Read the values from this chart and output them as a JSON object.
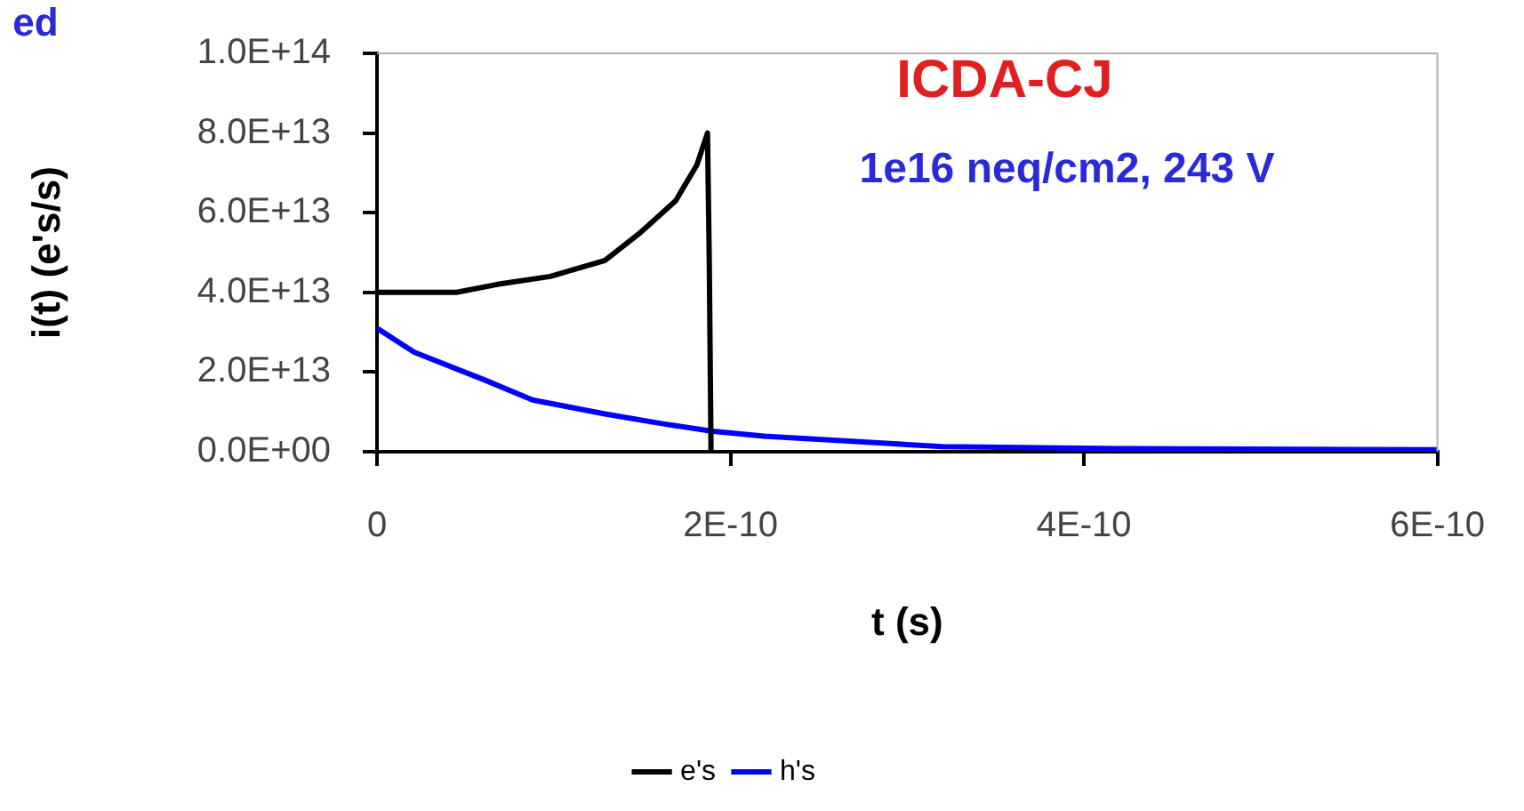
{
  "chart_data": {
    "type": "line",
    "xlabel": "t (s)",
    "ylabel": "i(t) (e's/s)",
    "annotations": [
      "ICDA-CJ",
      "1e16 neq/cm2, 243 V",
      "ed"
    ],
    "xlim": [
      0,
      6e-10
    ],
    "xticks": [
      0,
      {
        "value": 2e-10,
        "label": "2E-10"
      },
      {
        "value": 4e-10,
        "label": "4E-10"
      },
      {
        "value": 6e-10,
        "label": "6E-10"
      }
    ],
    "ylim": [
      0,
      100000000000000.0
    ],
    "yticks": [
      {
        "value": 0,
        "label": "0.0E+00"
      },
      {
        "value": 20000000000000.0,
        "label": "2.0E+13"
      },
      {
        "value": 40000000000000.0,
        "label": "4.0E+13"
      },
      {
        "value": 60000000000000.0,
        "label": "6.0E+13"
      },
      {
        "value": 80000000000000.0,
        "label": "8.0E+13"
      },
      {
        "value": 100000000000000.0,
        "label": "1.0E+14"
      }
    ],
    "grid": false,
    "legend": "bottom",
    "marker": "none",
    "line_style": "solid",
    "series": [
      {
        "name": "e's",
        "color": "#000000",
        "x": [
          0,
          4.5e-11,
          6.8e-11,
          9.8e-11,
          1.29e-10,
          1.49e-10,
          1.69e-10,
          1.81e-10,
          1.87e-10,
          1.88e-10,
          1.89e-10
        ],
        "values": [
          40000000000000.0,
          40000000000000.0,
          42000000000000.0,
          44000000000000.0,
          48000000000000.0,
          55000000000000.0,
          63000000000000.0,
          72000000000000.0,
          80000000000000.0,
          48000000000000.0,
          0
        ]
      },
      {
        "name": "h's",
        "color": "#0000ff",
        "x": [
          0,
          2.1e-11,
          6.1e-11,
          8.8e-11,
          1.29e-10,
          1.62e-10,
          1.89e-10,
          2.19e-10,
          2.69e-10,
          3.2e-10,
          3.97e-10,
          4.2e-10,
          6e-10
        ],
        "values": [
          31000000000000.0,
          25000000000000.0,
          18000000000000.0,
          13000000000000.0,
          9500000000000.0,
          7000000000000.0,
          5200000000000.0,
          3900000000000.0,
          2600000000000.0,
          1300000000000.0,
          900000000000.0,
          800000000000.0,
          500000000000.0
        ]
      }
    ]
  }
}
